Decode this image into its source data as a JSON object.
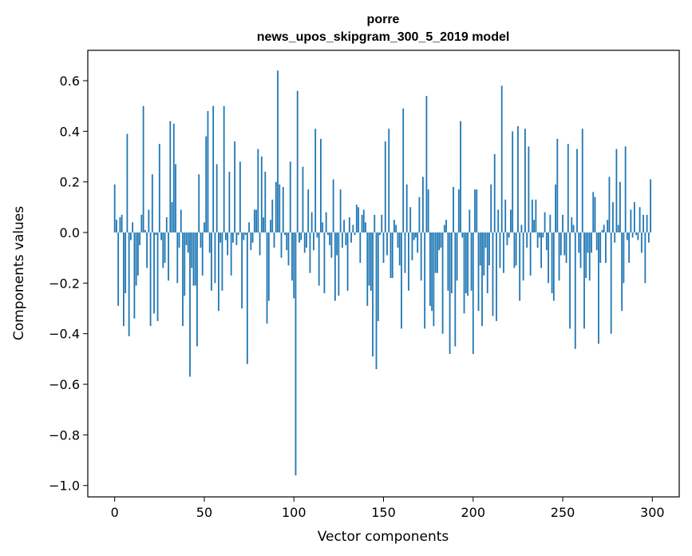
{
  "chart_data": {
    "type": "bar",
    "title_line1": "porre",
    "title_line2": "news_upos_skipgram_300_5_2019 model",
    "xlabel": "Vector components",
    "ylabel": "Components values",
    "xlim": [
      -15,
      315
    ],
    "ylim": [
      -1.045,
      0.72
    ],
    "xticks": [
      0,
      50,
      100,
      150,
      200,
      250,
      300
    ],
    "yticks": [
      -1.0,
      -0.8,
      -0.6,
      -0.4,
      -0.2,
      0.0,
      0.2,
      0.4,
      0.6
    ],
    "ytick_labels": [
      "−1.0",
      "−0.8",
      "−0.6",
      "−0.4",
      "−0.2",
      "0.0",
      "0.2",
      "0.4",
      "0.6"
    ],
    "grid": false,
    "bar_color": "#1f77b4",
    "values": [
      0.19,
      0.05,
      -0.29,
      0.06,
      0.07,
      -0.37,
      -0.24,
      0.39,
      -0.41,
      -0.03,
      0.04,
      -0.34,
      -0.21,
      -0.17,
      -0.05,
      0.07,
      0.5,
      0.01,
      -0.14,
      0.09,
      -0.37,
      0.23,
      -0.32,
      -0.01,
      -0.35,
      0.35,
      -0.03,
      -0.14,
      -0.12,
      0.06,
      -0.19,
      0.44,
      0.12,
      0.43,
      0.27,
      -0.2,
      -0.06,
      0.09,
      -0.37,
      -0.25,
      -0.05,
      -0.08,
      -0.57,
      -0.14,
      -0.21,
      -0.21,
      -0.45,
      0.23,
      -0.06,
      -0.17,
      0.04,
      0.38,
      0.48,
      -0.08,
      -0.23,
      0.5,
      -0.2,
      0.27,
      -0.31,
      -0.04,
      -0.23,
      0.5,
      -0.03,
      -0.09,
      0.24,
      -0.17,
      -0.04,
      0.36,
      -0.05,
      -0.01,
      0.28,
      -0.3,
      -0.03,
      -0.01,
      -0.52,
      0.04,
      -0.07,
      -0.04,
      0.09,
      0.09,
      0.33,
      -0.09,
      0.3,
      0.06,
      0.24,
      -0.36,
      -0.27,
      0.05,
      0.13,
      -0.06,
      0.2,
      0.64,
      0.19,
      -0.1,
      0.18,
      -0.01,
      -0.07,
      -0.13,
      0.28,
      -0.19,
      -0.26,
      -0.96,
      0.56,
      -0.04,
      -0.03,
      0.26,
      -0.08,
      -0.06,
      0.17,
      -0.16,
      0.08,
      -0.07,
      0.41,
      -0.02,
      -0.21,
      0.37,
      0.04,
      -0.24,
      0.08,
      -0.01,
      -0.05,
      -0.1,
      0.21,
      -0.27,
      -0.09,
      -0.25,
      0.17,
      -0.06,
      0.05,
      -0.05,
      -0.23,
      0.06,
      -0.04,
      0.03,
      -0.01,
      0.11,
      0.1,
      -0.12,
      0.07,
      0.09,
      0.04,
      -0.29,
      -0.21,
      -0.23,
      -0.49,
      0.07,
      -0.54,
      -0.35,
      -0.01,
      0.07,
      -0.12,
      0.36,
      -0.09,
      0.41,
      -0.18,
      -0.18,
      0.05,
      0.03,
      -0.06,
      -0.13,
      -0.38,
      0.49,
      -0.16,
      0.19,
      -0.23,
      0.1,
      -0.11,
      -0.03,
      -0.02,
      -0.08,
      0.14,
      -0.19,
      0.22,
      -0.38,
      0.54,
      0.17,
      -0.29,
      -0.31,
      -0.37,
      -0.16,
      -0.16,
      -0.07,
      -0.06,
      -0.4,
      0.03,
      0.05,
      -0.23,
      -0.48,
      -0.24,
      0.18,
      -0.45,
      -0.19,
      0.17,
      0.44,
      -0.02,
      -0.32,
      -0.24,
      -0.25,
      0.09,
      -0.23,
      -0.48,
      0.17,
      0.17,
      -0.31,
      -0.13,
      -0.37,
      -0.17,
      -0.06,
      -0.24,
      -0.13,
      0.19,
      -0.33,
      0.31,
      -0.35,
      0.09,
      -0.14,
      0.58,
      -0.16,
      0.13,
      -0.05,
      -0.02,
      0.09,
      0.4,
      -0.14,
      -0.13,
      0.42,
      -0.27,
      0.03,
      -0.19,
      0.41,
      -0.06,
      0.34,
      -0.17,
      0.13,
      0.05,
      0.13,
      -0.06,
      -0.02,
      -0.14,
      -0.02,
      0.08,
      -0.07,
      -0.2,
      0.07,
      -0.24,
      -0.27,
      0.19,
      0.37,
      -0.19,
      -0.09,
      0.07,
      -0.09,
      -0.12,
      0.35,
      -0.38,
      0.06,
      0.03,
      -0.46,
      0.33,
      -0.08,
      -0.14,
      0.41,
      -0.38,
      -0.18,
      -0.08,
      -0.19,
      -0.08,
      0.16,
      0.14,
      -0.07,
      -0.44,
      -0.12,
      0.01,
      0.03,
      -0.12,
      0.05,
      0.22,
      -0.4,
      0.12,
      -0.04,
      0.33,
      0.03,
      0.2,
      -0.31,
      -0.2,
      0.34,
      -0.03,
      -0.12,
      0.09,
      -0.02,
      0.12,
      -0.01,
      -0.03,
      0.1,
      -0.08,
      0.07,
      -0.2,
      0.07,
      -0.04,
      0.21
    ]
  }
}
